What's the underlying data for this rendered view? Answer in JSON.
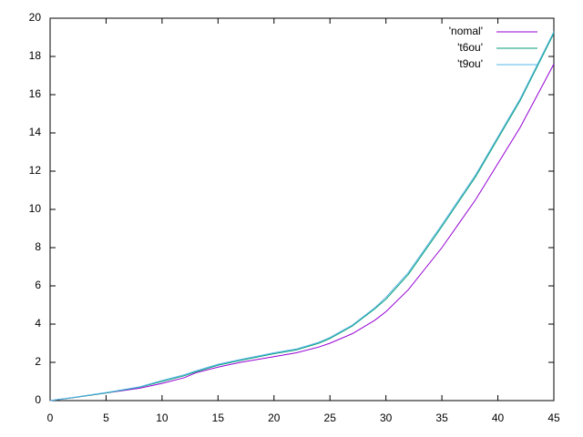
{
  "chart_data": {
    "type": "line",
    "x": [
      0,
      2,
      5,
      8,
      10,
      12,
      13,
      15,
      17,
      20,
      22,
      24,
      25,
      27,
      29,
      30,
      32,
      35,
      38,
      40,
      42,
      45
    ],
    "series": [
      {
        "name": "'nomal'",
        "color": "#9400d3",
        "values": [
          0,
          0.15,
          0.4,
          0.65,
          0.9,
          1.2,
          1.45,
          1.75,
          2.0,
          2.3,
          2.5,
          2.8,
          3.0,
          3.5,
          4.2,
          4.65,
          5.8,
          8.0,
          10.5,
          12.4,
          14.3,
          17.6
        ]
      },
      {
        "name": "'t6ou'",
        "color": "#009e73",
        "values": [
          0,
          0.15,
          0.4,
          0.7,
          1.0,
          1.3,
          1.5,
          1.85,
          2.1,
          2.45,
          2.65,
          3.0,
          3.25,
          3.9,
          4.8,
          5.3,
          6.6,
          9.1,
          11.7,
          13.7,
          15.7,
          19.2
        ]
      },
      {
        "name": "'t9ou'",
        "color": "#56b4e9",
        "values": [
          0,
          0.16,
          0.42,
          0.72,
          1.05,
          1.35,
          1.55,
          1.9,
          2.15,
          2.5,
          2.7,
          3.05,
          3.3,
          3.95,
          4.85,
          5.4,
          6.7,
          9.2,
          11.8,
          13.8,
          15.8,
          19.3
        ]
      }
    ],
    "xlim": [
      0,
      45
    ],
    "xticks": [
      0,
      5,
      10,
      15,
      20,
      25,
      30,
      35,
      40,
      45
    ],
    "ylim": [
      0,
      20
    ],
    "yticks": [
      0,
      2,
      4,
      6,
      8,
      10,
      12,
      14,
      16,
      18,
      20
    ],
    "legend": "top-right"
  }
}
